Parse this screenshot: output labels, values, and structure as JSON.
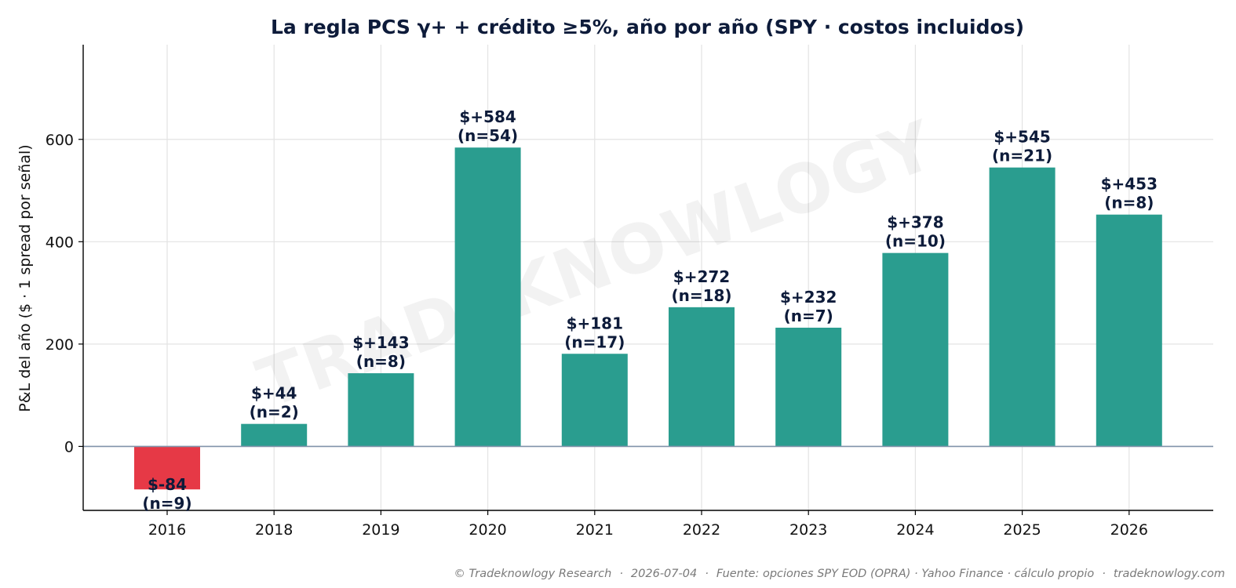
{
  "chart_data": {
    "type": "bar",
    "title": "La regla PCS γ+ + crédito ≥5%, año por año (SPY · costos incluidos)",
    "ylabel": "P&L del año ($ · 1 spread por señal)",
    "xlabel": "",
    "categories": [
      "2016",
      "2018",
      "2019",
      "2020",
      "2021",
      "2022",
      "2023",
      "2024",
      "2025",
      "2026"
    ],
    "values": [
      -84,
      44,
      143,
      584,
      181,
      272,
      232,
      378,
      545,
      453
    ],
    "counts": [
      9,
      2,
      8,
      54,
      17,
      18,
      7,
      10,
      21,
      8
    ],
    "value_labels": [
      "$-84",
      "$+44",
      "$+143",
      "$+584",
      "$+181",
      "$+272",
      "$+232",
      "$+378",
      "$+545",
      "$+453"
    ],
    "count_labels": [
      "(n=9)",
      "(n=2)",
      "(n=8)",
      "(n=54)",
      "(n=17)",
      "(n=18)",
      "(n=7)",
      "(n=10)",
      "(n=21)",
      "(n=8)"
    ],
    "ylim": [
      -125,
      785
    ],
    "yticks": [
      0,
      200,
      400,
      600
    ],
    "ytick_labels": [
      "0",
      "200",
      "400",
      "600"
    ],
    "grid": true,
    "colors": {
      "positive": "#2a9d8f",
      "negative": "#e63946",
      "title": "#0d1b3a",
      "labels": "#0d1b3a",
      "zero_line": "#8193aa",
      "grid": "#e3e3e3",
      "watermark": "#000000"
    },
    "watermark": "TRADEKNOWLOGY"
  },
  "footer": {
    "copyright": "© Tradeknowlogy Research",
    "date": "2026-07-04",
    "source": "Fuente: opciones SPY EOD (OPRA) · Yahoo Finance · cálculo propio",
    "site": "tradeknowlogy.com"
  }
}
